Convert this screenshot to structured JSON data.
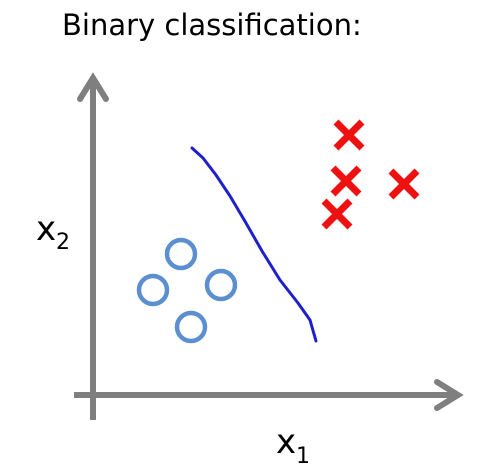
{
  "title": "Binary classification:",
  "x_axis": {
    "var": "x",
    "sub": "1"
  },
  "y_axis": {
    "var": "x",
    "sub": "2"
  },
  "colors": {
    "axis": "#7f7f7f",
    "boundary": "#1f1fcc",
    "circle": "#5b8fd0",
    "cross": "#ee1111"
  },
  "classes": {
    "circle": {
      "marker": "circle-outline",
      "points": [
        [
          181,
          254
        ],
        [
          153,
          290
        ],
        [
          221,
          285
        ],
        [
          191,
          327
        ]
      ]
    },
    "cross": {
      "marker": "x-cross",
      "points": [
        [
          349,
          135
        ],
        [
          346,
          181
        ],
        [
          404,
          184
        ],
        [
          337,
          214
        ]
      ]
    }
  },
  "decision_boundary": [
    [
      192,
      148
    ],
    [
      203,
      158
    ],
    [
      216,
      175
    ],
    [
      230,
      196
    ],
    [
      246,
      223
    ],
    [
      262,
      251
    ],
    [
      280,
      280
    ],
    [
      298,
      303
    ],
    [
      310,
      320
    ],
    [
      316,
      341
    ]
  ]
}
